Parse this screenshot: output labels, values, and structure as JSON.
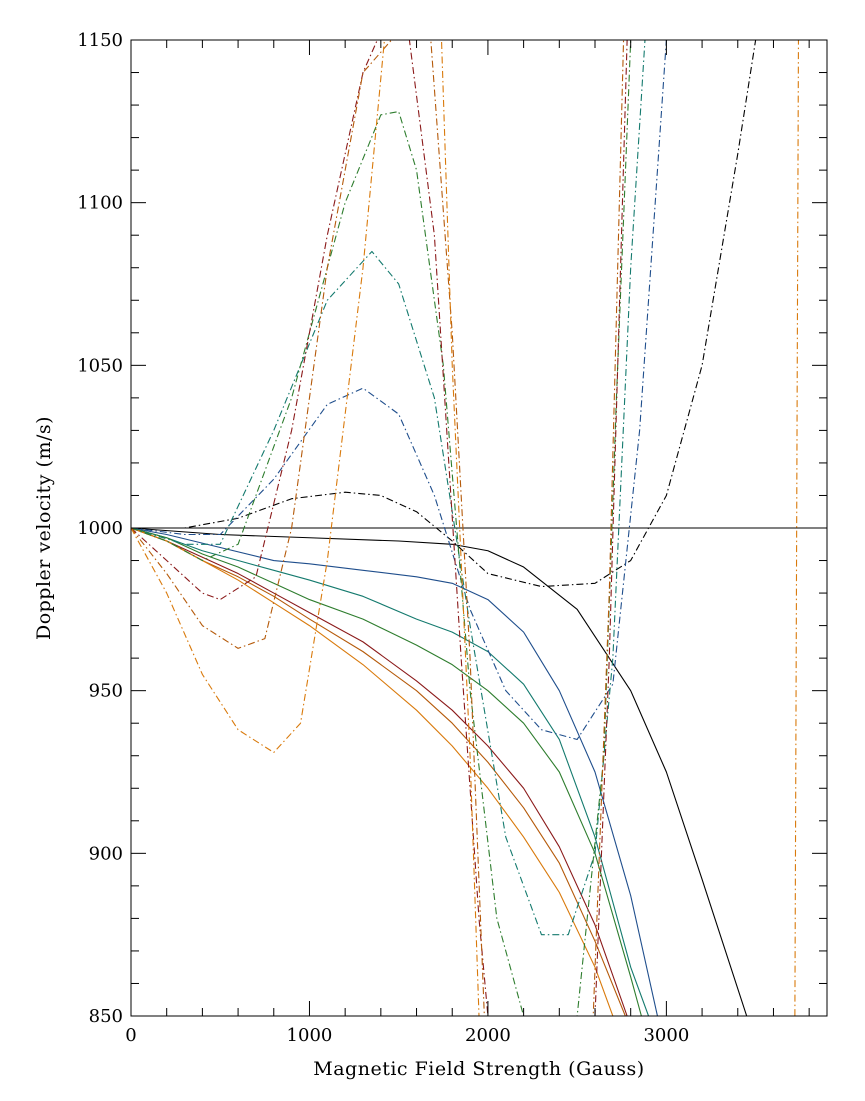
{
  "chart_data": {
    "type": "line",
    "title": "",
    "xlabel": "Magnetic Field Strength (Gauss)",
    "ylabel": "Doppler velocity (m/s)",
    "xlim": [
      0,
      3900
    ],
    "ylim": [
      850,
      1150
    ],
    "xticks": [
      0,
      1000,
      2000,
      3000
    ],
    "yticks": [
      850,
      900,
      950,
      1000,
      1050,
      1100,
      1150
    ],
    "xtick_labels": [
      "0",
      "1000",
      "2000",
      "3000"
    ],
    "ytick_labels": [
      "850",
      "900",
      "950",
      "1000",
      "1050",
      "1100",
      "1150"
    ],
    "grid": false,
    "legend": "none",
    "series": [
      {
        "style": "solid",
        "color": "#000000",
        "x": [
          0,
          3900
        ],
        "y": [
          1000,
          1000
        ]
      },
      {
        "style": "dashdot",
        "color": "#000000",
        "x": [
          0,
          3900
        ],
        "y": [
          1000,
          1000
        ]
      },
      {
        "style": "solid",
        "color": "#000000",
        "x": [
          0,
          500,
          1000,
          1500,
          1800,
          2000,
          2200,
          2500,
          2800,
          3000,
          3200,
          3450
        ],
        "y": [
          1000,
          998,
          997,
          996,
          995,
          993,
          988,
          975,
          950,
          925,
          892,
          850
        ]
      },
      {
        "style": "solid",
        "color": "#1f4e8c",
        "x": [
          0,
          200,
          500,
          800,
          1000,
          1300,
          1600,
          1800,
          2000,
          2200,
          2400,
          2600,
          2800,
          2950
        ],
        "y": [
          1000,
          998,
          994,
          990,
          989,
          987,
          985,
          983,
          978,
          968,
          950,
          925,
          887,
          850
        ]
      },
      {
        "style": "solid",
        "color": "#147a6e",
        "x": [
          0,
          200,
          400,
          600,
          800,
          1000,
          1300,
          1600,
          1800,
          2000,
          2200,
          2400,
          2600,
          2800,
          2900
        ],
        "y": [
          1000,
          997,
          993,
          990,
          987,
          984,
          979,
          972,
          968,
          962,
          952,
          935,
          905,
          865,
          850
        ]
      },
      {
        "style": "solid",
        "color": "#2e7d2e",
        "x": [
          0,
          200,
          400,
          600,
          800,
          1000,
          1300,
          1600,
          1800,
          2000,
          2200,
          2400,
          2600,
          2800,
          2860
        ],
        "y": [
          1000,
          997,
          992,
          988,
          983,
          978,
          972,
          964,
          958,
          950,
          940,
          925,
          900,
          862,
          850
        ]
      },
      {
        "style": "solid",
        "color": "#8b1a1a",
        "x": [
          0,
          200,
          400,
          600,
          800,
          1000,
          1300,
          1600,
          1800,
          2000,
          2200,
          2400,
          2600,
          2780
        ],
        "y": [
          1000,
          996,
          991,
          986,
          980,
          974,
          965,
          953,
          944,
          933,
          920,
          902,
          878,
          850
        ]
      },
      {
        "style": "solid",
        "color": "#b55a0a",
        "x": [
          0,
          200,
          400,
          600,
          800,
          1000,
          1300,
          1600,
          1800,
          2000,
          2200,
          2400,
          2600,
          2770
        ],
        "y": [
          1000,
          996,
          990,
          985,
          979,
          972,
          962,
          950,
          940,
          928,
          914,
          897,
          873,
          850
        ]
      },
      {
        "style": "solid",
        "color": "#d97a0c",
        "x": [
          0,
          200,
          400,
          600,
          800,
          1000,
          1300,
          1600,
          1800,
          2000,
          2200,
          2400,
          2600,
          2700
        ],
        "y": [
          1000,
          996,
          990,
          984,
          977,
          970,
          958,
          944,
          933,
          920,
          905,
          888,
          865,
          850
        ]
      },
      {
        "style": "dashdot",
        "color": "#000000",
        "x": [
          0,
          300,
          600,
          900,
          1200,
          1400,
          1600,
          1800,
          2000,
          2300,
          2600,
          2800,
          3000,
          3200,
          3400,
          3500
        ],
        "y": [
          1000,
          1000,
          1003,
          1009,
          1011,
          1010,
          1005,
          996,
          986,
          982,
          983,
          990,
          1010,
          1050,
          1115,
          1150
        ]
      },
      {
        "style": "dashdot",
        "color": "#1f4e8c",
        "x": [
          0,
          300,
          500,
          800,
          1100,
          1300,
          1500,
          1700,
          1900,
          2100,
          2300,
          2500,
          2700,
          2850,
          3000
        ],
        "y": [
          1000,
          998,
          998,
          1015,
          1038,
          1043,
          1035,
          1010,
          975,
          950,
          938,
          935,
          952,
          1030,
          1150
        ]
      },
      {
        "style": "dashdot",
        "color": "#147a6e",
        "x": [
          0,
          300,
          500,
          800,
          1100,
          1350,
          1500,
          1700,
          1900,
          2100,
          2300,
          2450,
          2600,
          2700,
          2800,
          2880
        ],
        "y": [
          1000,
          995,
          995,
          1030,
          1070,
          1085,
          1075,
          1040,
          970,
          905,
          875,
          875,
          900,
          960,
          1080,
          1150
        ]
      },
      {
        "style": "dashdot",
        "color": "#2e7d2e",
        "x": [
          0,
          200,
          400,
          600,
          900,
          1200,
          1400,
          1500,
          1600,
          1750,
          1900,
          2050,
          2200,
          2500,
          2650,
          2720,
          2800
        ],
        "y": [
          1000,
          996,
          990,
          995,
          1040,
          1100,
          1127,
          1128,
          1110,
          1050,
          950,
          880,
          850,
          850,
          930,
          1040,
          1150
        ]
      },
      {
        "style": "dashdot",
        "color": "#8b1a1a",
        "x": [
          0,
          200,
          400,
          500,
          700,
          900,
          1100,
          1300,
          1380,
          1560,
          1700,
          1850,
          1950,
          2000,
          2600,
          2680,
          2780
        ],
        "y": [
          1000,
          990,
          980,
          978,
          985,
          1030,
          1090,
          1140,
          1150,
          1150,
          1090,
          960,
          880,
          850,
          850,
          960,
          1150
        ]
      },
      {
        "style": "dashdot",
        "color": "#b55a0a",
        "x": [
          0,
          200,
          400,
          600,
          750,
          900,
          1100,
          1300,
          1460,
          1680,
          1800,
          1900,
          1980,
          2590,
          2680,
          2760
        ],
        "y": [
          1000,
          986,
          970,
          963,
          966,
          1000,
          1080,
          1140,
          1150,
          1150,
          1060,
          960,
          850,
          850,
          980,
          1150
        ]
      },
      {
        "style": "dashdot",
        "color": "#d97a0c",
        "x": [
          0,
          200,
          400,
          600,
          800,
          950,
          1100,
          1300,
          1420,
          1740,
          1800,
          1900,
          1950,
          3720,
          3740
        ],
        "y": [
          1000,
          980,
          955,
          938,
          931,
          940,
          990,
          1080,
          1150,
          1150,
          1050,
          930,
          850,
          850,
          1150
        ]
      }
    ]
  }
}
